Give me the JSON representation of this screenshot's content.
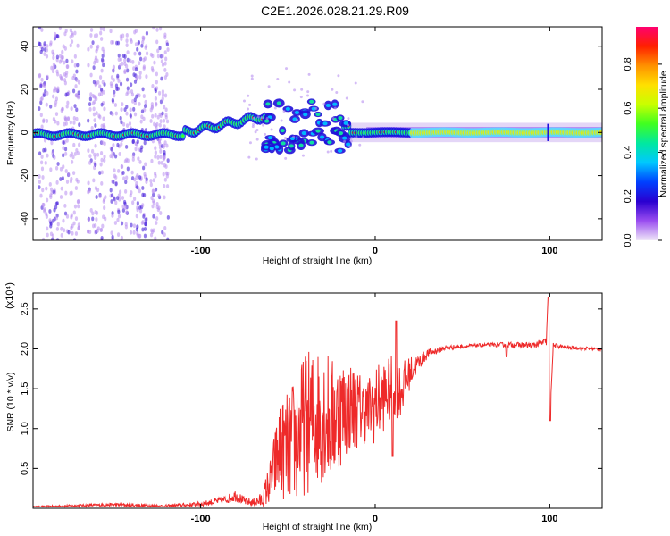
{
  "title": "C2E1.2026.028.21.29.R09",
  "chart_data": [
    {
      "type": "heatmap",
      "xlabel": "Height of straight line (km)",
      "ylabel": "Frequency (Hz)",
      "xlim": [
        -196,
        130
      ],
      "ylim": [
        -50,
        49
      ],
      "xticks": [
        -100,
        0,
        100
      ],
      "yticks": [
        -40,
        -20,
        0,
        20,
        40
      ],
      "colorbar": {
        "label": "Normalized spectral amplitude",
        "range": [
          0.0,
          0.97
        ],
        "ticks": [
          0.0,
          0.2,
          0.4,
          0.6,
          0.8
        ],
        "colors": [
          "#f0e8f8",
          "#9a4df0",
          "#2a00d0",
          "#0040ff",
          "#00c8ff",
          "#00e8a0",
          "#40ff20",
          "#c8ff00",
          "#ffe000",
          "#ff9000",
          "#ff2000",
          "#ff0070"
        ]
      },
      "features": [
        {
          "name": "baseline line",
          "x_range": [
            -196,
            130
          ],
          "frequency": 0
        },
        {
          "name": "wavy segment",
          "x_range": [
            -110,
            -60
          ],
          "frequency_peak": 8
        },
        {
          "name": "split blobs",
          "x_range": [
            -65,
            -15
          ],
          "frequency_range": [
            -8,
            15
          ]
        },
        {
          "name": "noise columns",
          "x_range": [
            -196,
            -115
          ],
          "frequency_range": [
            -50,
            49
          ]
        }
      ]
    },
    {
      "type": "line",
      "xlabel": "Height of straight line (km)",
      "ylabel": "SNR (10 * v/v)",
      "y_multiplier": "(x10⁴)",
      "xlim": [
        -196,
        130
      ],
      "ylim": [
        0,
        2.7
      ],
      "xticks": [
        -100,
        0,
        100
      ],
      "yticks": [
        0.5,
        1.0,
        1.5,
        2.0,
        2.5
      ],
      "series": [
        {
          "name": "SNR",
          "color": "#ee2a2a",
          "x": [
            -196,
            -150,
            -120,
            -100,
            -85,
            -80,
            -75,
            -70,
            -65,
            -60,
            -55,
            -50,
            -45,
            -40,
            -35,
            -30,
            -25,
            -20,
            -15,
            -10,
            -5,
            0,
            5,
            10,
            15,
            20,
            25,
            30,
            40,
            60,
            75,
            90,
            98,
            99,
            100,
            102,
            110,
            130
          ],
          "values": [
            0.02,
            0.05,
            0.03,
            0.06,
            0.12,
            0.18,
            0.1,
            0.08,
            0.12,
            0.4,
            0.85,
            0.9,
            1.05,
            1.25,
            1.3,
            1.4,
            1.25,
            1.35,
            1.4,
            1.35,
            1.3,
            1.4,
            1.5,
            1.6,
            1.55,
            1.75,
            1.85,
            1.95,
            2.02,
            2.05,
            2.06,
            2.05,
            2.1,
            2.65,
            1.1,
            2.05,
            2.02,
            2.0
          ],
          "noise": [
            0.01,
            0.02,
            0.02,
            0.03,
            0.05,
            0.08,
            0.05,
            0.05,
            0.1,
            0.3,
            0.6,
            0.7,
            0.85,
            0.9,
            0.9,
            0.9,
            0.8,
            0.7,
            0.6,
            0.5,
            0.4,
            0.5,
            0.45,
            0.4,
            0.35,
            0.2,
            0.1,
            0.06,
            0.03,
            0.02,
            0.03,
            0.04,
            0.05,
            0.0,
            0.0,
            0.03,
            0.02,
            0.02
          ]
        }
      ]
    }
  ]
}
